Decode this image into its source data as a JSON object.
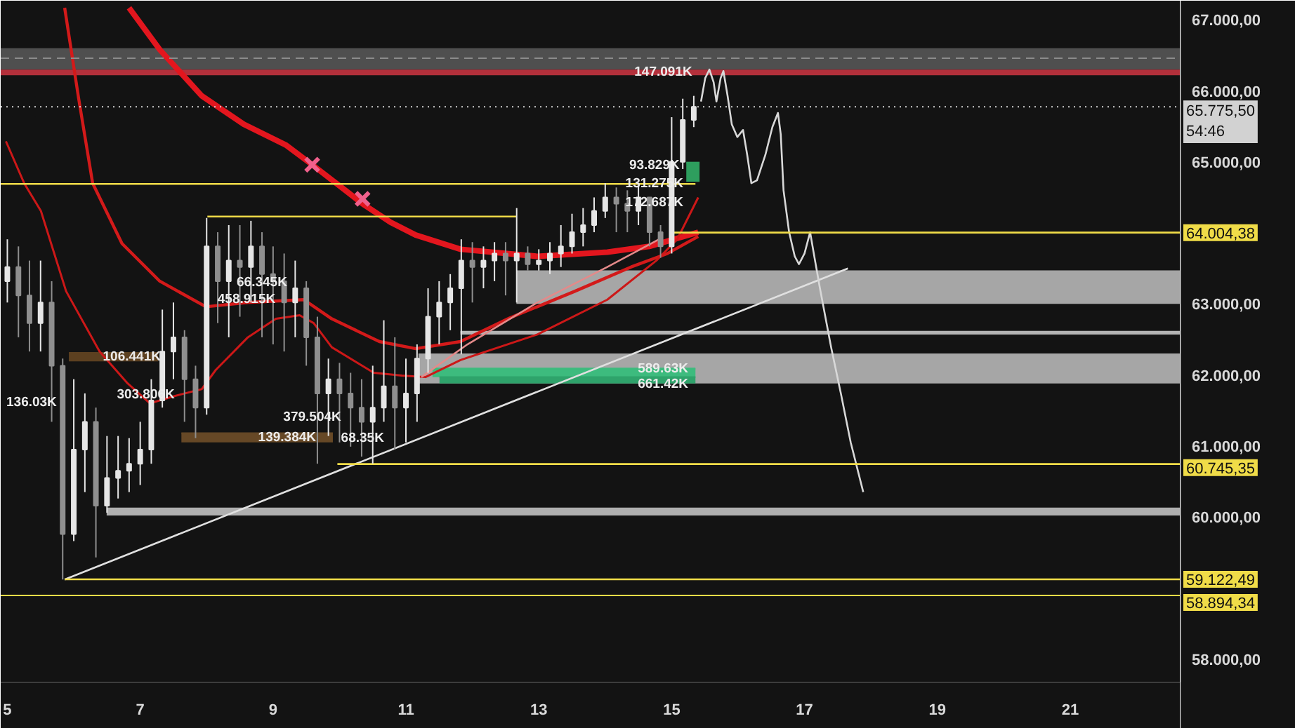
{
  "chart_data": {
    "type": "candlestick",
    "x": [
      5.0,
      5.167,
      5.333,
      5.5,
      5.667,
      5.833,
      6.0,
      6.167,
      6.333,
      6.5,
      6.667,
      6.833,
      7.0,
      7.167,
      7.333,
      7.5,
      7.667,
      7.833,
      8.0,
      8.167,
      8.333,
      8.5,
      8.667,
      8.833,
      9.0,
      9.167,
      9.333,
      9.5,
      9.667,
      9.833,
      10.0,
      10.167,
      10.333,
      10.5,
      10.667,
      10.833,
      11.0,
      11.167,
      11.333,
      11.5,
      11.667,
      11.833,
      12.0,
      12.167,
      12.333,
      12.5,
      12.667,
      12.833,
      13.0,
      13.167,
      13.333,
      13.5,
      13.667,
      13.833,
      14.0,
      14.167,
      14.333,
      14.5,
      14.667,
      14.833,
      15.0,
      15.167,
      15.333
    ],
    "ohlc": [
      [
        63320,
        63910,
        63020,
        63520
      ],
      [
        63520,
        63810,
        62530,
        63120
      ],
      [
        63120,
        63610,
        62330,
        62730
      ],
      [
        62730,
        63610,
        62330,
        63020
      ],
      [
        63020,
        63320,
        61340,
        62130
      ],
      [
        62130,
        62230,
        59120,
        59760
      ],
      [
        59760,
        61940,
        59660,
        60950
      ],
      [
        60950,
        61740,
        60350,
        61340
      ],
      [
        61340,
        61540,
        59430,
        60160
      ],
      [
        60160,
        61140,
        60060,
        60550
      ],
      [
        60550,
        61140,
        60260,
        60650
      ],
      [
        60650,
        61110,
        60350,
        60750
      ],
      [
        60750,
        61340,
        60450,
        60950
      ],
      [
        60950,
        61940,
        60750,
        61640
      ],
      [
        61640,
        62920,
        61540,
        62330
      ],
      [
        62330,
        63020,
        61940,
        62530
      ],
      [
        62530,
        62630,
        61340,
        61940
      ],
      [
        61940,
        62130,
        61110,
        61540
      ],
      [
        61540,
        64210,
        61440,
        63810
      ],
      [
        63810,
        64010,
        62730,
        63320
      ],
      [
        63320,
        64110,
        62530,
        63610
      ],
      [
        63610,
        64110,
        62820,
        63520
      ],
      [
        63520,
        64170,
        63020,
        63810
      ],
      [
        63810,
        64010,
        62530,
        63420
      ],
      [
        63420,
        63810,
        62430,
        63320
      ],
      [
        63320,
        63710,
        62330,
        63020
      ],
      [
        63020,
        63610,
        62530,
        63220
      ],
      [
        63220,
        63320,
        62130,
        62530
      ],
      [
        62530,
        62820,
        60750,
        61740
      ],
      [
        61740,
        62230,
        61140,
        61940
      ],
      [
        61940,
        62170,
        61050,
        61740
      ],
      [
        61740,
        62030,
        60990,
        61540
      ],
      [
        61540,
        61940,
        60850,
        61340
      ],
      [
        61340,
        62130,
        60750,
        61540
      ],
      [
        61540,
        62770,
        61340,
        61840
      ],
      [
        61840,
        62530,
        60950,
        61540
      ],
      [
        61540,
        62230,
        61050,
        61740
      ],
      [
        61740,
        62430,
        61340,
        62230
      ],
      [
        62230,
        63220,
        62030,
        62820
      ],
      [
        62820,
        63320,
        62430,
        63020
      ],
      [
        63020,
        63420,
        62630,
        63220
      ],
      [
        63220,
        63910,
        62290,
        63610
      ],
      [
        63610,
        63870,
        63020,
        63520
      ],
      [
        63520,
        63810,
        63220,
        63610
      ],
      [
        63610,
        63870,
        63320,
        63710
      ],
      [
        63710,
        63870,
        63120,
        63610
      ],
      [
        63610,
        64350,
        63020,
        63710
      ],
      [
        63710,
        63810,
        63470,
        63560
      ],
      [
        63560,
        63770,
        63470,
        63610
      ],
      [
        63610,
        63870,
        63420,
        63710
      ],
      [
        63710,
        64110,
        63520,
        63810
      ],
      [
        63810,
        64270,
        63710,
        64010
      ],
      [
        64010,
        64350,
        63810,
        64110
      ],
      [
        64110,
        64500,
        64010,
        64310
      ],
      [
        64310,
        64700,
        64210,
        64500
      ],
      [
        64500,
        64640,
        64010,
        64410
      ],
      [
        64410,
        64600,
        64010,
        64310
      ],
      [
        64310,
        64660,
        64110,
        64500
      ],
      [
        64500,
        64500,
        63810,
        64010
      ],
      [
        64010,
        64110,
        63650,
        63810
      ],
      [
        63810,
        65630,
        63710,
        65000
      ],
      [
        65000,
        65890,
        64900,
        65590
      ],
      [
        65590,
        65930,
        65490,
        65775.5
      ]
    ],
    "colors": [
      "#e6e6e6",
      "#8f8f8f",
      "#8f8f8f",
      "#e6e6e6",
      "#8f8f8f",
      "#8f8f8f",
      "#e6e6e6",
      "#e6e6e6",
      "#8f8f8f",
      "#e6e6e6",
      "#e6e6e6",
      "#e6e6e6",
      "#e6e6e6",
      "#e6e6e6",
      "#e6e6e6",
      "#e6e6e6",
      "#8f8f8f",
      "#8f8f8f",
      "#e6e6e6",
      "#8f8f8f",
      "#e6e6e6",
      "#8f8f8f",
      "#e6e6e6",
      "#8f8f8f",
      "#8f8f8f",
      "#8f8f8f",
      "#e6e6e6",
      "#8f8f8f",
      "#8f8f8f",
      "#e6e6e6",
      "#8f8f8f",
      "#8f8f8f",
      "#8f8f8f",
      "#e6e6e6",
      "#e6e6e6",
      "#8f8f8f",
      "#e6e6e6",
      "#e6e6e6",
      "#e6e6e6",
      "#e6e6e6",
      "#e6e6e6",
      "#e6e6e6",
      "#8f8f8f",
      "#e6e6e6",
      "#e6e6e6",
      "#8f8f8f",
      "#e6e6e6",
      "#8f8f8f",
      "#e6e6e6",
      "#e6e6e6",
      "#e6e6e6",
      "#e6e6e6",
      "#e6e6e6",
      "#e6e6e6",
      "#e6e6e6",
      "#8f8f8f",
      "#8f8f8f",
      "#e6e6e6",
      "#8f8f8f",
      "#8f8f8f",
      "#e6e6e6",
      "#e6e6e6",
      "#e6e6e6"
    ],
    "series": [
      {
        "type": "line",
        "color": "#e3161e",
        "x": [
          6.832,
          7.295,
          7.926,
          8.558,
          9.189,
          9.589,
          10.032,
          10.347,
          10.768,
          11.147,
          11.821,
          12.979,
          14.032,
          14.663,
          15.4
        ],
        "values": [
          67170,
          66580,
          65930,
          65530,
          65240,
          64960,
          64640,
          64410,
          64150,
          63970,
          63770,
          63670,
          63730,
          63810,
          64010
        ]
      },
      {
        "type": "line",
        "color": "#d31a1a",
        "x": [
          5.863,
          6.074,
          6.284,
          6.726,
          7.295,
          7.989,
          8.621,
          9.463,
          9.884,
          10.6,
          11.147,
          11.821,
          12.558,
          13.547,
          14.389,
          14.937,
          15.4
        ],
        "values": [
          67170,
          65890,
          64700,
          63850,
          63320,
          62960,
          63020,
          63060,
          62790,
          62470,
          62370,
          62470,
          62800,
          63180,
          63520,
          63710,
          63950
        ]
      },
      {
        "type": "line",
        "color": "#cc1818",
        "x": [
          4.979,
          5.253,
          5.505,
          5.884,
          6.389,
          6.811,
          7.147,
          7.505,
          7.926,
          8.137,
          8.621,
          9.042,
          9.4,
          9.611,
          9.884,
          10.516,
          10.937,
          11.295,
          11.821,
          12.979,
          14.032,
          14.768,
          15.084,
          15.4
        ],
        "values": [
          65290,
          64700,
          64310,
          63180,
          62330,
          61880,
          61600,
          61700,
          61800,
          62070,
          62530,
          62790,
          62840,
          62730,
          62390,
          62030,
          61990,
          61970,
          62210,
          62570,
          63060,
          63610,
          63910,
          64500
        ]
      },
      {
        "type": "line",
        "color": "#e48a8a",
        "x": [
          11.232,
          11.926,
          12.979,
          14.032,
          14.811
        ],
        "values": [
          61970,
          62430,
          63020,
          63520,
          63910
        ]
      },
      {
        "type": "line",
        "color": "#e0e0e0",
        "x": [
          5.863,
          17.653
        ],
        "values": [
          59120,
          63500
        ]
      },
      {
        "type": "line",
        "color": "#d8d8d8",
        "x": [
          15.442,
          15.505,
          15.568,
          15.632,
          15.674,
          15.737,
          15.779,
          15.842,
          15.905,
          15.989,
          16.074,
          16.137,
          16.2,
          16.284,
          16.411,
          16.516,
          16.6,
          16.642,
          16.684,
          16.768,
          16.853,
          16.916,
          17.0,
          17.084,
          17.147,
          17.232,
          17.4,
          17.547,
          17.695,
          17.884
        ],
        "values": [
          65850,
          66180,
          66300,
          66120,
          65850,
          66180,
          66280,
          65930,
          65530,
          65350,
          65450,
          65100,
          64700,
          64740,
          65100,
          65490,
          65690,
          65390,
          64600,
          64010,
          63670,
          63560,
          63710,
          64010,
          63670,
          63220,
          62390,
          61740,
          61050,
          60350
        ]
      },
      {
        "type": "line",
        "color": "#f0dc48",
        "x": [
          4.9,
          15.358
        ],
        "values": [
          64690,
          64690
        ]
      },
      {
        "type": "line",
        "color": "#f0dc48",
        "x": [
          8.011,
          12.663
        ],
        "values": [
          64230,
          64230
        ]
      },
      {
        "type": "line",
        "color": "#f0dc48",
        "x": [
          14.979,
          22.66
        ],
        "values": [
          64004.38,
          64004.38
        ],
        "value_labels": [
          null,
          "64.004,38"
        ]
      },
      {
        "type": "line",
        "color": "#f0dc48",
        "x": [
          9.968,
          22.66
        ],
        "values": [
          60745.35,
          60745.35
        ],
        "value_labels": [
          null,
          "60.745,35"
        ]
      },
      {
        "type": "line",
        "color": "#f0dc48",
        "x": [
          5.863,
          22.66
        ],
        "values": [
          59122.49,
          59122.49
        ],
        "value_labels": [
          null,
          "59.122,49"
        ]
      },
      {
        "type": "line",
        "color": "#b4b4b4",
        "x": [
          11.821,
          22.66
        ],
        "values": [
          62610,
          62610
        ],
        "lower": [
          62570,
          62570
        ],
        "upper": [
          62610,
          62610
        ]
      },
      {
        "type": "line",
        "color": "#a6a6a6",
        "x": [
          12.663,
          22.66
        ],
        "values": [
          63460,
          63460
        ],
        "lower": [
          63000,
          63000
        ],
        "upper": [
          63460,
          63460
        ]
      },
      {
        "type": "line",
        "color": "#a6a6a6",
        "x": [
          11.189,
          22.66
        ],
        "values": [
          62290,
          62290
        ],
        "lower": [
          61880,
          61880
        ],
        "upper": [
          62290,
          62290
        ]
      },
      {
        "type": "line",
        "color": "#b0b0b0",
        "x": [
          6.495,
          22.66
        ],
        "values": [
          60120,
          60120
        ],
        "lower": [
          60020,
          60020
        ],
        "upper": [
          60120,
          60120
        ]
      },
      {
        "type": "line",
        "color": "#3dbb7e",
        "x": [
          11.4,
          15.358
        ],
        "values": [
          62090,
          62090
        ],
        "lower": [
          61970,
          61970
        ],
        "upper": [
          62090,
          62090
        ]
      },
      {
        "type": "line",
        "color": "#2fa36b",
        "x": [
          11.505,
          15.358
        ],
        "values": [
          61970,
          61970
        ],
        "lower": [
          61880,
          61880
        ],
        "upper": [
          61970,
          61970
        ]
      },
      {
        "type": "line",
        "color": "#5c4020",
        "x": [
          5.926,
          7.27
        ],
        "values": [
          62310,
          62310
        ],
        "lower": [
          62190,
          62190
        ],
        "upper": [
          62310,
          62310
        ]
      },
      {
        "type": "line",
        "color": "#664826",
        "x": [
          7.62,
          9.9
        ],
        "values": [
          61180,
          61180
        ],
        "lower": [
          61050,
          61050
        ],
        "upper": [
          61180,
          61180
        ]
      },
      {
        "type": "line",
        "color": "#2e9e5e",
        "x": [
          15.22,
          15.42
        ],
        "values": [
          64990,
          64990
        ],
        "lower": [
          64720,
          64720
        ],
        "upper": [
          64990,
          64990
        ]
      },
      {
        "type": "scatter",
        "color": "#f0608c",
        "marker": "cross",
        "x": [
          9.589,
          10.347
        ],
        "values": [
          64960,
          64480
        ]
      }
    ],
    "xlim": [
      4.9,
      22.66
    ],
    "ylim": [
      57670,
      67270
    ],
    "xticks": [
      5,
      7,
      9,
      11,
      13,
      15,
      17,
      19,
      21
    ],
    "yticks": [
      {
        "value": 58000,
        "label": "58.000,00"
      },
      {
        "value": 60000,
        "label": "60.000,00"
      },
      {
        "value": 61000,
        "label": "61.000,00"
      },
      {
        "value": 62000,
        "label": "62.000,00"
      },
      {
        "value": 63000,
        "label": "63.000,00"
      },
      {
        "value": 65000,
        "label": "65.000,00"
      },
      {
        "value": 66000,
        "label": "66.000,00"
      },
      {
        "value": 67000,
        "label": "67.000,00"
      }
    ],
    "bands": [
      {
        "axis": "y",
        "from": 66300,
        "to": 66600,
        "color": "#4f4f4f"
      },
      {
        "axis": "y",
        "from": 66220,
        "to": 66300,
        "color": "#b3303b"
      }
    ],
    "ref_lines": [
      {
        "axis": "y",
        "value": 66460,
        "color": "#8c8c8c",
        "line_style": "dashed"
      },
      {
        "axis": "y",
        "value": 65775.5,
        "label": "65.775,50\n54:46",
        "color": "#d2d2d2",
        "line_style": "dotted"
      },
      {
        "axis": "y",
        "value": 58894.34,
        "label": "58.894,34",
        "color": "#f0dc48"
      }
    ],
    "annotations": [
      {
        "text": "147.091K",
        "x": 14.874,
        "y": 66260
      },
      {
        "text": "93.829K\n131.275K\n172.687K",
        "x": 14.74,
        "y": 64690
      },
      {
        "text": "589.63K",
        "x": 14.87,
        "y": 62030
      },
      {
        "text": "661.42K",
        "x": 14.87,
        "y": 61925
      },
      {
        "text": "106.441K",
        "x": 6.874,
        "y": 62250
      },
      {
        "text": "303.806K",
        "x": 7.084,
        "y": 61720
      },
      "136.03K",
      {
        "text": "66.345K",
        "x": 8.832,
        "y": 63300
      },
      {
        "text": "458.915K",
        "x": 8.6,
        "y": 63060
      },
      {
        "text": "379.504K",
        "x": 9.589,
        "y": 61400
      },
      {
        "text": "139.384K",
        "x": 9.211,
        "y": 61115
      },
      {
        "text": "68.35K",
        "x": 10.347,
        "y": 61110
      }
    ],
    "grid": false
  }
}
